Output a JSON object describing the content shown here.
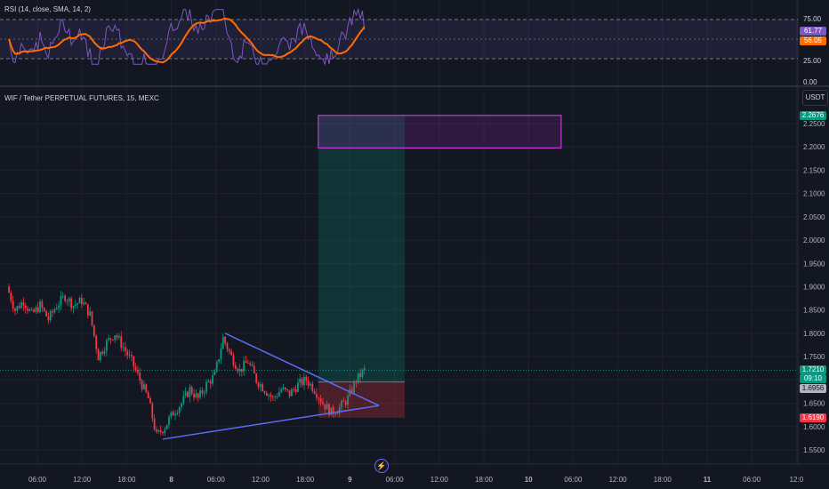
{
  "rsi": {
    "title": "RSI (14, close, SMA, 14, 2)",
    "value_label": "61.77",
    "ma_label": "56.05",
    "colors": {
      "rsi": "#7e57c2",
      "ma": "#ff6d00",
      "band": "#7e57c2"
    },
    "y_ticks": [
      "75.00",
      "25.00",
      "0.00"
    ]
  },
  "main": {
    "title": "WIF / Tether PERPETUAL FUTURES, 15, MEXC",
    "currency": "USDT",
    "y_ticks": [
      "2.2500",
      "2.2000",
      "2.1500",
      "2.1000",
      "2.0500",
      "2.0000",
      "1.9500",
      "1.9000",
      "1.8500",
      "1.8000",
      "1.7500",
      "1.7000",
      "1.6500",
      "1.6000",
      "1.5500"
    ],
    "badges": {
      "target": {
        "text": "2.2676",
        "color": "#089981"
      },
      "price": {
        "text": "1.7210",
        "color": "#089981"
      },
      "countdown": {
        "text": "09:10",
        "color": "#089981"
      },
      "entry": {
        "text": "1.6956",
        "color": "#b2b5be"
      },
      "stop": {
        "text": "1.6190",
        "color": "#f23645"
      }
    }
  },
  "time_axis": [
    "06:00",
    "12:00",
    "18:00",
    "8",
    "06:00",
    "12:00",
    "18:00",
    "9",
    "06:00",
    "12:00",
    "18:00",
    "10",
    "06:00",
    "12:00",
    "18:00",
    "11",
    "06:00",
    "12:0"
  ],
  "chart_data": {
    "type": "candlestick",
    "instrument": "WIF / Tether PERPETUAL FUTURES",
    "interval": "15",
    "exchange": "MEXC",
    "ylim": [
      1.53,
      2.29
    ],
    "waypoints": [
      [
        0,
        1.9
      ],
      [
        1,
        1.85
      ],
      [
        2,
        1.87
      ],
      [
        3,
        1.84
      ],
      [
        4,
        1.86
      ],
      [
        5,
        1.83
      ],
      [
        6,
        1.86
      ],
      [
        7,
        1.88
      ],
      [
        8,
        1.86
      ],
      [
        9,
        1.87
      ],
      [
        10,
        1.84
      ],
      [
        11,
        1.75
      ],
      [
        12,
        1.78
      ],
      [
        13,
        1.8
      ],
      [
        14,
        1.77
      ],
      [
        15,
        1.74
      ],
      [
        16,
        1.7
      ],
      [
        17,
        1.66
      ],
      [
        18,
        1.58
      ],
      [
        19,
        1.6
      ],
      [
        20,
        1.63
      ],
      [
        21,
        1.65
      ],
      [
        22,
        1.68
      ],
      [
        23,
        1.66
      ],
      [
        24,
        1.69
      ],
      [
        25,
        1.71
      ],
      [
        26,
        1.79
      ],
      [
        27,
        1.75
      ],
      [
        28,
        1.72
      ],
      [
        29,
        1.74
      ],
      [
        30,
        1.7
      ],
      [
        31,
        1.68
      ],
      [
        32,
        1.66
      ],
      [
        33,
        1.68
      ],
      [
        34,
        1.67
      ],
      [
        35,
        1.69
      ],
      [
        36,
        1.7
      ],
      [
        37,
        1.68
      ],
      [
        38,
        1.65
      ],
      [
        39,
        1.63
      ],
      [
        40,
        1.64
      ],
      [
        41,
        1.66
      ],
      [
        42,
        1.7
      ],
      [
        43,
        1.721
      ]
    ],
    "triangle": {
      "upper": [
        [
          26,
          1.8
        ],
        [
          44.5,
          1.645
        ]
      ],
      "lower": [
        [
          18.5,
          1.573
        ],
        [
          44.5,
          1.645
        ]
      ]
    },
    "position": {
      "entry": 1.6956,
      "target": 2.2676,
      "stop": 1.619,
      "start": 37.2,
      "end": 47.6
    },
    "target_zone": {
      "top": 2.2676,
      "bottom": 2.1976,
      "start": 37.2,
      "end": 66.4
    },
    "last_price": 1.721,
    "rsi": {
      "levels": [
        75,
        25
      ],
      "range": [
        0,
        100
      ],
      "last": 61.77,
      "ma_last": 56.05
    }
  }
}
